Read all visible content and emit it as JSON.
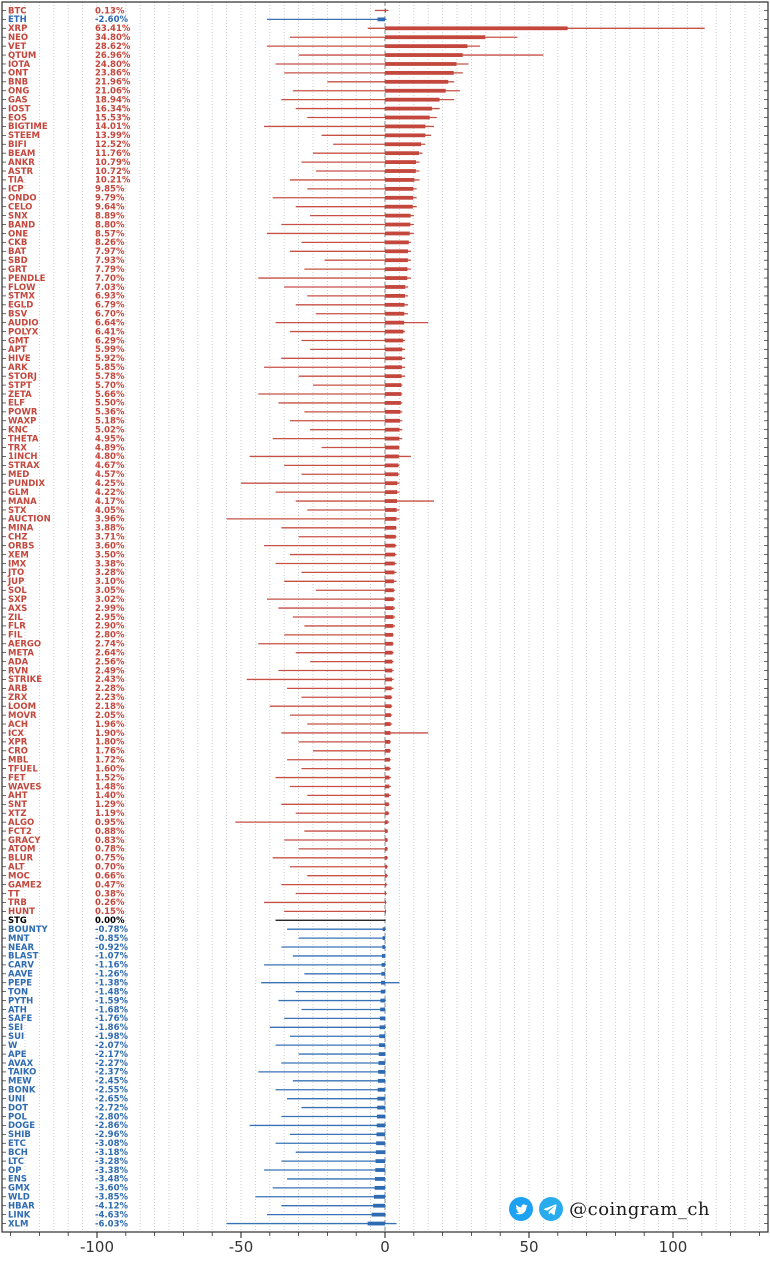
{
  "watermark": {
    "handle": "@coingram_ch"
  },
  "axis": {
    "x_ticks": [
      -100,
      -50,
      0,
      50,
      100
    ],
    "x_domain": [
      -133,
      133
    ]
  },
  "colors": {
    "positive": "#c4473d",
    "negative": "#2e6bb2",
    "zero": "#000000",
    "grid": "#c3c3c3",
    "frame": "#2b2b2b",
    "tick_label": "#333333"
  },
  "chart_data": {
    "type": "bar",
    "orientation": "horizontal",
    "title": "",
    "xlabel": "",
    "ylabel": "",
    "xlim": [
      -133,
      133
    ],
    "grid": true,
    "value_suffix": "%",
    "rows": [
      {
        "ticker": "BTC",
        "change": 0.13,
        "low": -3.5,
        "high": 1.2
      },
      {
        "ticker": "ETH",
        "change": -2.6,
        "low": -41,
        "high": 0.5
      },
      {
        "ticker": "XRP",
        "change": 63.41,
        "low": -6,
        "high": 111
      },
      {
        "ticker": "NEO",
        "change": 34.8,
        "low": -33,
        "high": 46
      },
      {
        "ticker": "VET",
        "change": 28.62,
        "low": -41,
        "high": 33
      },
      {
        "ticker": "QTUM",
        "change": 26.96,
        "low": -30,
        "high": 55
      },
      {
        "ticker": "IOTA",
        "change": 24.8,
        "low": -38,
        "high": 29
      },
      {
        "ticker": "ONT",
        "change": 23.86,
        "low": -35,
        "high": 27
      },
      {
        "ticker": "BNB",
        "change": 21.96,
        "low": -20,
        "high": 24
      },
      {
        "ticker": "ONG",
        "change": 21.06,
        "low": -32,
        "high": 26
      },
      {
        "ticker": "GAS",
        "change": 18.94,
        "low": -36,
        "high": 24
      },
      {
        "ticker": "IOST",
        "change": 16.34,
        "low": -31,
        "high": 19
      },
      {
        "ticker": "EOS",
        "change": 15.53,
        "low": -27,
        "high": 18
      },
      {
        "ticker": "BIGTIME",
        "change": 14.01,
        "low": -42,
        "high": 17
      },
      {
        "ticker": "STEEM",
        "change": 13.99,
        "low": -22,
        "high": 16
      },
      {
        "ticker": "BIFI",
        "change": 12.52,
        "low": -18,
        "high": 14
      },
      {
        "ticker": "BEAM",
        "change": 11.76,
        "low": -25,
        "high": 13
      },
      {
        "ticker": "ANKR",
        "change": 10.79,
        "low": -29,
        "high": 12
      },
      {
        "ticker": "ASTR",
        "change": 10.72,
        "low": -24,
        "high": 12
      },
      {
        "ticker": "TIA",
        "change": 10.21,
        "low": -33,
        "high": 12
      },
      {
        "ticker": "ICP",
        "change": 9.85,
        "low": -27,
        "high": 11
      },
      {
        "ticker": "ONDO",
        "change": 9.79,
        "low": -39,
        "high": 11
      },
      {
        "ticker": "CELO",
        "change": 9.64,
        "low": -31,
        "high": 11
      },
      {
        "ticker": "SNX",
        "change": 8.89,
        "low": -26,
        "high": 10
      },
      {
        "ticker": "BAND",
        "change": 8.8,
        "low": -36,
        "high": 10
      },
      {
        "ticker": "ONE",
        "change": 8.57,
        "low": -41,
        "high": 10
      },
      {
        "ticker": "CKB",
        "change": 8.26,
        "low": -29,
        "high": 9
      },
      {
        "ticker": "BAT",
        "change": 7.97,
        "low": -33,
        "high": 9
      },
      {
        "ticker": "SBD",
        "change": 7.93,
        "low": -21,
        "high": 9
      },
      {
        "ticker": "GRT",
        "change": 7.79,
        "low": -28,
        "high": 9
      },
      {
        "ticker": "PENDLE",
        "change": 7.7,
        "low": -44,
        "high": 9
      },
      {
        "ticker": "FLOW",
        "change": 7.03,
        "low": -35,
        "high": 8
      },
      {
        "ticker": "STMX",
        "change": 6.93,
        "low": -27,
        "high": 8
      },
      {
        "ticker": "EGLD",
        "change": 6.79,
        "low": -31,
        "high": 8
      },
      {
        "ticker": "BSV",
        "change": 6.7,
        "low": -24,
        "high": 8
      },
      {
        "ticker": "AUDIO",
        "change": 6.64,
        "low": -38,
        "high": 15
      },
      {
        "ticker": "POLYX",
        "change": 6.41,
        "low": -33,
        "high": 7
      },
      {
        "ticker": "GMT",
        "change": 6.29,
        "low": -29,
        "high": 7
      },
      {
        "ticker": "APT",
        "change": 5.99,
        "low": -26,
        "high": 7
      },
      {
        "ticker": "HIVE",
        "change": 5.92,
        "low": -36,
        "high": 7
      },
      {
        "ticker": "ARK",
        "change": 5.85,
        "low": -42,
        "high": 7
      },
      {
        "ticker": "STORJ",
        "change": 5.78,
        "low": -30,
        "high": 7
      },
      {
        "ticker": "STPT",
        "change": 5.7,
        "low": -25,
        "high": 6
      },
      {
        "ticker": "ZETA",
        "change": 5.66,
        "low": -44,
        "high": 6
      },
      {
        "ticker": "ELF",
        "change": 5.5,
        "low": -37,
        "high": 6
      },
      {
        "ticker": "POWR",
        "change": 5.36,
        "low": -28,
        "high": 6
      },
      {
        "ticker": "WAXP",
        "change": 5.18,
        "low": -33,
        "high": 6
      },
      {
        "ticker": "KNC",
        "change": 5.02,
        "low": -26,
        "high": 6
      },
      {
        "ticker": "THETA",
        "change": 4.95,
        "low": -39,
        "high": 6
      },
      {
        "ticker": "TRX",
        "change": 4.89,
        "low": -22,
        "high": 5
      },
      {
        "ticker": "1INCH",
        "change": 4.8,
        "low": -47,
        "high": 9
      },
      {
        "ticker": "STRAX",
        "change": 4.67,
        "low": -35,
        "high": 5
      },
      {
        "ticker": "MED",
        "change": 4.57,
        "low": -29,
        "high": 5
      },
      {
        "ticker": "PUNDIX",
        "change": 4.25,
        "low": -50,
        "high": 5
      },
      {
        "ticker": "GLM",
        "change": 4.22,
        "low": -38,
        "high": 5
      },
      {
        "ticker": "MANA",
        "change": 4.17,
        "low": -31,
        "high": 17
      },
      {
        "ticker": "STX",
        "change": 4.05,
        "low": -27,
        "high": 5
      },
      {
        "ticker": "AUCTION",
        "change": 3.96,
        "low": -55,
        "high": 5
      },
      {
        "ticker": "MINA",
        "change": 3.88,
        "low": -36,
        "high": 4
      },
      {
        "ticker": "CHZ",
        "change": 3.71,
        "low": -30,
        "high": 4
      },
      {
        "ticker": "ORBS",
        "change": 3.6,
        "low": -42,
        "high": 4
      },
      {
        "ticker": "XEM",
        "change": 3.5,
        "low": -33,
        "high": 4
      },
      {
        "ticker": "IMX",
        "change": 3.38,
        "low": -38,
        "high": 4
      },
      {
        "ticker": "JTO",
        "change": 3.28,
        "low": -29,
        "high": 4
      },
      {
        "ticker": "JUP",
        "change": 3.1,
        "low": -35,
        "high": 4
      },
      {
        "ticker": "SOL",
        "change": 3.05,
        "low": -24,
        "high": 3.5
      },
      {
        "ticker": "SXP",
        "change": 3.02,
        "low": -41,
        "high": 3.5
      },
      {
        "ticker": "AXS",
        "change": 2.99,
        "low": -37,
        "high": 3.5
      },
      {
        "ticker": "ZIL",
        "change": 2.95,
        "low": -32,
        "high": 3.5
      },
      {
        "ticker": "FLR",
        "change": 2.9,
        "low": -28,
        "high": 3.5
      },
      {
        "ticker": "FIL",
        "change": 2.8,
        "low": -35,
        "high": 3
      },
      {
        "ticker": "AERGO",
        "change": 2.74,
        "low": -44,
        "high": 3
      },
      {
        "ticker": "META",
        "change": 2.64,
        "low": -31,
        "high": 3
      },
      {
        "ticker": "ADA",
        "change": 2.56,
        "low": -26,
        "high": 3
      },
      {
        "ticker": "RVN",
        "change": 2.49,
        "low": -37,
        "high": 3
      },
      {
        "ticker": "STRIKE",
        "change": 2.43,
        "low": -48,
        "high": 3
      },
      {
        "ticker": "ARB",
        "change": 2.28,
        "low": -34,
        "high": 3
      },
      {
        "ticker": "ZRX",
        "change": 2.23,
        "low": -29,
        "high": 2.5
      },
      {
        "ticker": "LOOM",
        "change": 2.18,
        "low": -40,
        "high": 2.5
      },
      {
        "ticker": "MOVR",
        "change": 2.05,
        "low": -33,
        "high": 2.5
      },
      {
        "ticker": "ACH",
        "change": 1.96,
        "low": -27,
        "high": 2.5
      },
      {
        "ticker": "ICX",
        "change": 1.9,
        "low": -36,
        "high": 15
      },
      {
        "ticker": "XPR",
        "change": 1.8,
        "low": -30,
        "high": 2
      },
      {
        "ticker": "CRO",
        "change": 1.76,
        "low": -25,
        "high": 2
      },
      {
        "ticker": "MBL",
        "change": 1.72,
        "low": -34,
        "high": 2
      },
      {
        "ticker": "TFUEL",
        "change": 1.6,
        "low": -29,
        "high": 2
      },
      {
        "ticker": "FET",
        "change": 1.52,
        "low": -38,
        "high": 2
      },
      {
        "ticker": "WAVES",
        "change": 1.48,
        "low": -33,
        "high": 2
      },
      {
        "ticker": "AHT",
        "change": 1.4,
        "low": -27,
        "high": 2
      },
      {
        "ticker": "SNT",
        "change": 1.29,
        "low": -36,
        "high": 1.5
      },
      {
        "ticker": "XTZ",
        "change": 1.19,
        "low": -31,
        "high": 1.5
      },
      {
        "ticker": "ALGO",
        "change": 0.95,
        "low": -52,
        "high": 1.5
      },
      {
        "ticker": "FCT2",
        "change": 0.88,
        "low": -28,
        "high": 1
      },
      {
        "ticker": "GRACY",
        "change": 0.83,
        "low": -35,
        "high": 1
      },
      {
        "ticker": "ATOM",
        "change": 0.78,
        "low": -30,
        "high": 1
      },
      {
        "ticker": "BLUR",
        "change": 0.75,
        "low": -39,
        "high": 1
      },
      {
        "ticker": "ALT",
        "change": 0.7,
        "low": -33,
        "high": 1
      },
      {
        "ticker": "MOC",
        "change": 0.66,
        "low": -27,
        "high": 1
      },
      {
        "ticker": "GAME2",
        "change": 0.47,
        "low": -36,
        "high": 0.8
      },
      {
        "ticker": "TT",
        "change": 0.38,
        "low": -31,
        "high": 0.6
      },
      {
        "ticker": "TRB",
        "change": 0.26,
        "low": -42,
        "high": 0.5
      },
      {
        "ticker": "HUNT",
        "change": 0.15,
        "low": -35,
        "high": 0.3
      },
      {
        "ticker": "STG",
        "change": 0.0,
        "low": -38,
        "high": 0.2
      },
      {
        "ticker": "BOUNTY",
        "change": -0.78,
        "low": -34,
        "high": 0.3
      },
      {
        "ticker": "MNT",
        "change": -0.85,
        "low": -30,
        "high": 0.2
      },
      {
        "ticker": "NEAR",
        "change": -0.92,
        "low": -36,
        "high": 0.3
      },
      {
        "ticker": "BLAST",
        "change": -1.07,
        "low": -32,
        "high": 0.2
      },
      {
        "ticker": "CARV",
        "change": -1.16,
        "low": -42,
        "high": 0.3
      },
      {
        "ticker": "AAVE",
        "change": -1.26,
        "low": -28,
        "high": 0.2
      },
      {
        "ticker": "PEPE",
        "change": -1.38,
        "low": -43,
        "high": 5
      },
      {
        "ticker": "TON",
        "change": -1.48,
        "low": -31,
        "high": 0.2
      },
      {
        "ticker": "PYTH",
        "change": -1.59,
        "low": -37,
        "high": 0.3
      },
      {
        "ticker": "ATH",
        "change": -1.68,
        "low": -29,
        "high": 0.2
      },
      {
        "ticker": "SAFE",
        "change": -1.76,
        "low": -35,
        "high": 0.2
      },
      {
        "ticker": "SEI",
        "change": -1.86,
        "low": -40,
        "high": 0.3
      },
      {
        "ticker": "SUI",
        "change": -1.98,
        "low": -33,
        "high": 0.2
      },
      {
        "ticker": "W",
        "change": -2.07,
        "low": -38,
        "high": 0.2
      },
      {
        "ticker": "APE",
        "change": -2.17,
        "low": -30,
        "high": 0.2
      },
      {
        "ticker": "AVAX",
        "change": -2.27,
        "low": -36,
        "high": 0.2
      },
      {
        "ticker": "TAIKO",
        "change": -2.37,
        "low": -44,
        "high": 0.3
      },
      {
        "ticker": "MEW",
        "change": -2.45,
        "low": -32,
        "high": 0.2
      },
      {
        "ticker": "BONK",
        "change": -2.55,
        "low": -38,
        "high": 0.2
      },
      {
        "ticker": "UNI",
        "change": -2.65,
        "low": -34,
        "high": 0.2
      },
      {
        "ticker": "DOT",
        "change": -2.72,
        "low": -29,
        "high": 0.2
      },
      {
        "ticker": "POL",
        "change": -2.8,
        "low": -36,
        "high": 0.2
      },
      {
        "ticker": "DOGE",
        "change": -2.86,
        "low": -47,
        "high": 0.3
      },
      {
        "ticker": "SHIB",
        "change": -2.96,
        "low": -33,
        "high": 0.2
      },
      {
        "ticker": "ETC",
        "change": -3.08,
        "low": -38,
        "high": 0.2
      },
      {
        "ticker": "BCH",
        "change": -3.18,
        "low": -31,
        "high": 0.2
      },
      {
        "ticker": "LTC",
        "change": -3.28,
        "low": -36,
        "high": 0.2
      },
      {
        "ticker": "OP",
        "change": -3.38,
        "low": -42,
        "high": 0.2
      },
      {
        "ticker": "ENS",
        "change": -3.48,
        "low": -34,
        "high": 0.2
      },
      {
        "ticker": "GMX",
        "change": -3.6,
        "low": -39,
        "high": 0.2
      },
      {
        "ticker": "WLD",
        "change": -3.85,
        "low": -45,
        "high": 0.3
      },
      {
        "ticker": "HBAR",
        "change": -4.12,
        "low": -36,
        "high": 0.2
      },
      {
        "ticker": "LINK",
        "change": -4.63,
        "low": -41,
        "high": 0.3
      },
      {
        "ticker": "XLM",
        "change": -6.03,
        "low": -55,
        "high": 4
      }
    ]
  }
}
